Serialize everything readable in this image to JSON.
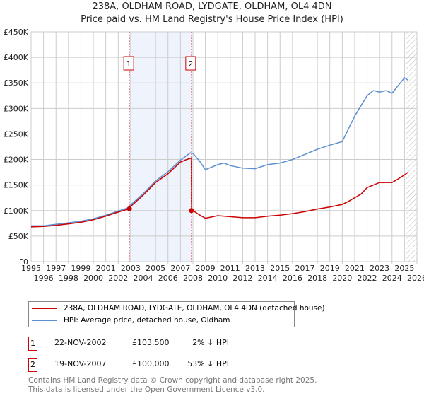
{
  "title": "238A, OLDHAM ROAD, LYDGATE, OLDHAM, OL4 4DN",
  "subtitle": "Price paid vs. HM Land Registry's House Price Index (HPI)",
  "chart_data": {
    "type": "line",
    "ylim": [
      0,
      450000
    ],
    "xlim": [
      1995,
      2026
    ],
    "yticks": [
      {
        "v": 0,
        "label": "£0"
      },
      {
        "v": 50000,
        "label": "£50K"
      },
      {
        "v": 100000,
        "label": "£100K"
      },
      {
        "v": 150000,
        "label": "£150K"
      },
      {
        "v": 200000,
        "label": "£200K"
      },
      {
        "v": 250000,
        "label": "£250K"
      },
      {
        "v": 300000,
        "label": "£300K"
      },
      {
        "v": 350000,
        "label": "£350K"
      },
      {
        "v": 400000,
        "label": "£400K"
      },
      {
        "v": 450000,
        "label": "£450K"
      }
    ],
    "xticks": [
      "1995",
      "1996",
      "1997",
      "1998",
      "1999",
      "2000",
      "2001",
      "2002",
      "2003",
      "2004",
      "2005",
      "2006",
      "2007",
      "2008",
      "2009",
      "2010",
      "2011",
      "2012",
      "2013",
      "2014",
      "2015",
      "2016",
      "2017",
      "2018",
      "2019",
      "2020",
      "2021",
      "2022",
      "2023",
      "2024",
      "2025",
      "2026"
    ],
    "shaded_region": [
      2002.9,
      2007.88
    ],
    "hatched_from": 2025.1,
    "series": [
      {
        "name": "238A, OLDHAM ROAD, LYDGATE, OLDHAM, OL4 4DN (detached house)",
        "color": "#cc0000",
        "x": [
          1995,
          1996,
          1997,
          1998,
          1999,
          2000,
          2001,
          2002,
          2002.9,
          2003,
          2004,
          2005,
          2006,
          2007,
          2007.5,
          2007.87,
          2007.88,
          2008,
          2008.5,
          2009,
          2010,
          2011,
          2012,
          2013,
          2014,
          2015,
          2016,
          2017,
          2018,
          2019,
          2020,
          2020.5,
          2021,
          2021.5,
          2022,
          2022.5,
          2023,
          2024,
          2024.5,
          2025,
          2025.3
        ],
        "y": [
          68000,
          69000,
          71000,
          74000,
          77000,
          82000,
          89000,
          97000,
          103500,
          108000,
          130000,
          155000,
          172000,
          195000,
          200000,
          203000,
          100000,
          100000,
          92000,
          85000,
          90000,
          88000,
          86000,
          86000,
          89000,
          91000,
          94000,
          98000,
          103000,
          107000,
          112000,
          118000,
          125000,
          132000,
          145000,
          150000,
          155000,
          155000,
          162000,
          170000,
          175000
        ]
      },
      {
        "name": "HPI: Average price, detached house, Oldham",
        "color": "#5b8fd0",
        "x": [
          1995,
          1996,
          1997,
          1998,
          1999,
          2000,
          2001,
          2002,
          2002.9,
          2003,
          2004,
          2005,
          2006,
          2007,
          2007.8,
          2008,
          2008.5,
          2009,
          2009.5,
          2010,
          2010.5,
          2011,
          2012,
          2013,
          2014,
          2015,
          2016,
          2017,
          2018,
          2019,
          2020,
          2020.5,
          2021,
          2021.5,
          2022,
          2022.5,
          2023,
          2023.5,
          2024,
          2024.5,
          2025,
          2025.3
        ],
        "y": [
          70000,
          70000,
          73000,
          76000,
          79000,
          84000,
          91000,
          99000,
          106000,
          111000,
          133000,
          158000,
          176000,
          199000,
          213000,
          212000,
          198000,
          180000,
          185000,
          190000,
          193000,
          188000,
          183000,
          182000,
          190000,
          193000,
          200000,
          210000,
          220000,
          228000,
          235000,
          260000,
          285000,
          305000,
          325000,
          335000,
          332000,
          335000,
          330000,
          345000,
          360000,
          355000
        ]
      }
    ],
    "sales": [
      {
        "num": "1",
        "x": 2002.9,
        "y": 103500
      },
      {
        "num": "2",
        "x": 2007.88,
        "y": 100000
      }
    ]
  },
  "legend": {
    "red": "238A, OLDHAM ROAD, LYDGATE, OLDHAM, OL4 4DN (detached house)",
    "blue": "HPI: Average price, detached house, Oldham"
  },
  "transactions": [
    {
      "num": "1",
      "date": "22-NOV-2002",
      "price": "£103,500",
      "hpi": "2% ↓ HPI"
    },
    {
      "num": "2",
      "date": "19-NOV-2007",
      "price": "£100,000",
      "hpi": "53% ↓ HPI"
    }
  ],
  "footer": [
    "Contains HM Land Registry data © Crown copyright and database right 2025.",
    "This data is licensed under the Open Government Licence v3.0."
  ]
}
